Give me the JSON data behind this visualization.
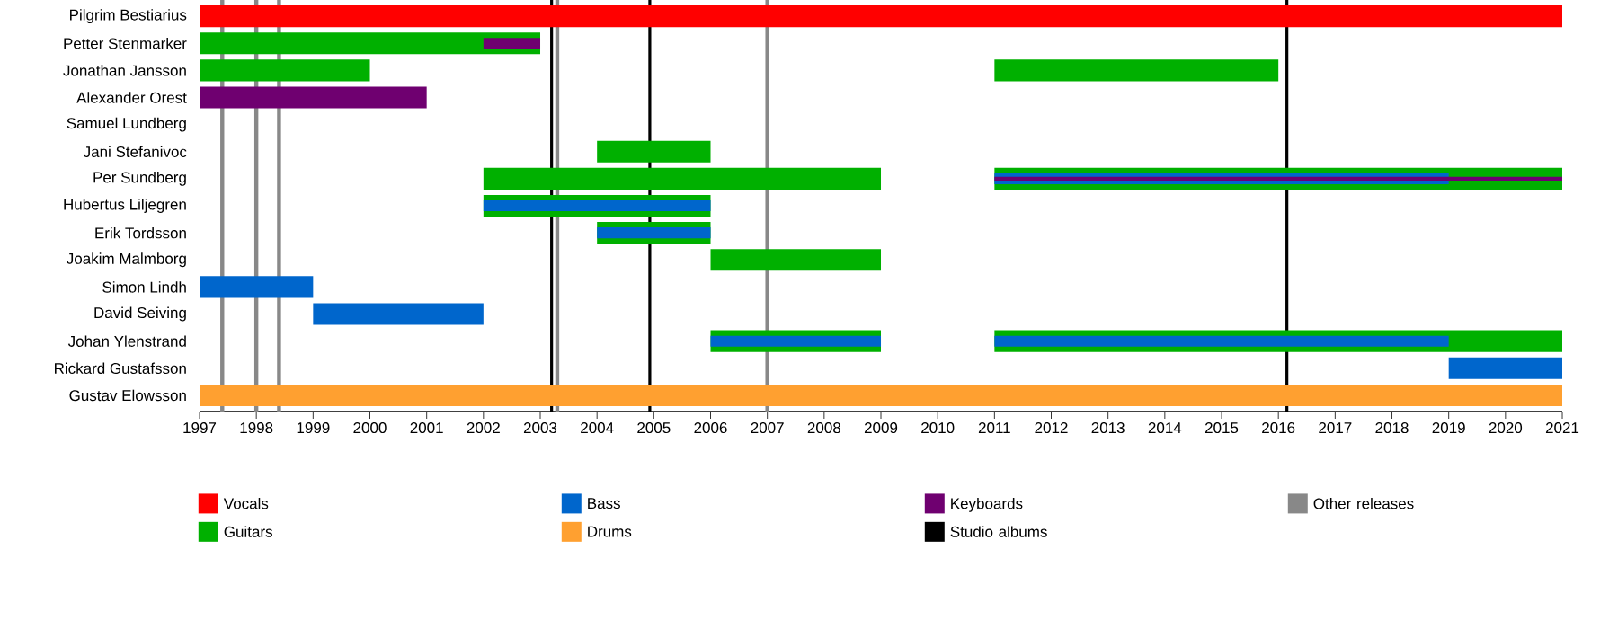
{
  "chart_data": {
    "type": "bar",
    "orientation": "horizontal",
    "legend": "bottom",
    "categories": [
      "Pilgrim Bestiarius",
      "Petter Stenmarker",
      "Jonathan Jansson",
      "Alexander Orest",
      "Samuel Lundberg",
      "Jani Stefanivoc",
      "Per Sundberg",
      "Hubertus Liljegren",
      "Erik Tordsson",
      "Joakim Malmborg",
      "Simon Lindh",
      "David Seiving",
      "Johan Ylenstrand",
      "Rickard Gustafsson",
      "Gustav Elowsson"
    ],
    "xlim": [
      1997,
      2021
    ],
    "xticks": [
      1997,
      1998,
      1999,
      2000,
      2001,
      2002,
      2003,
      2004,
      2005,
      2006,
      2007,
      2008,
      2009,
      2010,
      2011,
      2012,
      2013,
      2014,
      2015,
      2016,
      2017,
      2018,
      2019,
      2020,
      2021
    ],
    "series": [
      {
        "name": "Vocals",
        "color": "#ff0000",
        "base": [
          1997,
          null,
          null,
          null,
          null,
          null,
          null,
          null,
          null,
          null,
          null,
          null,
          null,
          null,
          null
        ],
        "values": [
          24,
          null,
          null,
          null,
          null,
          null,
          null,
          null,
          null,
          null,
          null,
          null,
          null,
          null,
          null
        ]
      },
      {
        "name": "Guitars",
        "color": "#00b000",
        "base": [
          null,
          1997,
          1997,
          null,
          null,
          2004,
          2002,
          2002,
          2004,
          2006,
          null,
          null,
          2006,
          null,
          null
        ],
        "values": [
          null,
          6,
          3,
          null,
          null,
          2,
          7,
          4,
          2,
          3,
          null,
          null,
          3,
          null,
          null
        ]
      },
      {
        "color": "#00b000",
        "base": [
          null,
          null,
          2011,
          null,
          null,
          null,
          2011,
          null,
          null,
          null,
          null,
          null,
          2011,
          null,
          null
        ],
        "values": [
          null,
          null,
          5,
          null,
          null,
          null,
          10,
          null,
          null,
          null,
          null,
          null,
          10,
          null,
          null
        ]
      },
      {
        "name": "Bass",
        "color": "#0066cc",
        "base": [
          null,
          null,
          null,
          null,
          null,
          null,
          null,
          null,
          null,
          null,
          1997,
          1999,
          null,
          2019,
          null
        ],
        "values": [
          null,
          null,
          null,
          null,
          null,
          null,
          null,
          null,
          null,
          null,
          2,
          3,
          null,
          2,
          null
        ]
      },
      {
        "name": "Drums",
        "color": "#ffa030",
        "base": [
          null,
          null,
          null,
          null,
          null,
          null,
          null,
          null,
          null,
          null,
          null,
          null,
          null,
          null,
          1997
        ],
        "values": [
          null,
          null,
          null,
          null,
          null,
          null,
          null,
          null,
          null,
          null,
          null,
          null,
          null,
          null,
          24
        ]
      },
      {
        "name": "Keyboards",
        "color": "#6f0070",
        "base": [
          null,
          null,
          null,
          1997,
          null,
          null,
          null,
          null,
          null,
          null,
          null,
          null,
          null,
          null,
          null
        ],
        "values": [
          null,
          null,
          null,
          4,
          null,
          null,
          null,
          null,
          null,
          null,
          null,
          null,
          null,
          null,
          null
        ]
      },
      {
        "color": "#0066cc",
        "base": [
          null,
          null,
          null,
          null,
          null,
          null,
          2011,
          2002,
          2004,
          null,
          null,
          null,
          2006,
          null,
          null
        ],
        "values": [
          null,
          null,
          null,
          null,
          null,
          null,
          8,
          4,
          2,
          null,
          null,
          null,
          3,
          null,
          null
        ]
      },
      {
        "color": "#0066cc",
        "base": [
          null,
          null,
          null,
          null,
          null,
          null,
          null,
          null,
          null,
          null,
          null,
          null,
          2011,
          null,
          null
        ],
        "values": [
          null,
          null,
          null,
          null,
          null,
          null,
          null,
          null,
          null,
          null,
          null,
          null,
          8,
          null,
          null
        ]
      },
      {
        "color": "#6f0070",
        "base": [
          null,
          2002,
          null,
          null,
          null,
          null,
          2011,
          null,
          null,
          null,
          null,
          null,
          null,
          null,
          null
        ],
        "values": [
          null,
          1,
          null,
          null,
          null,
          null,
          10,
          null,
          null,
          null,
          null,
          null,
          null,
          null,
          null
        ]
      }
    ],
    "ref_lines": [
      {
        "axis": "x",
        "value": 2003.2,
        "color": "#000000",
        "label": "Studio albums"
      },
      {
        "axis": "x",
        "value": 2004.93,
        "color": "#000000"
      },
      {
        "axis": "x",
        "value": 2016.15,
        "color": "#000000"
      },
      {
        "axis": "x",
        "value": 1997.4,
        "color": "#888888",
        "label": "Other releases"
      },
      {
        "axis": "x",
        "value": 1998.0,
        "color": "#888888"
      },
      {
        "axis": "x",
        "value": 1998.4,
        "color": "#888888"
      },
      {
        "axis": "x",
        "value": 2003.3,
        "color": "#888888"
      },
      {
        "axis": "x",
        "value": 2007.0,
        "color": "#888888"
      }
    ]
  }
}
